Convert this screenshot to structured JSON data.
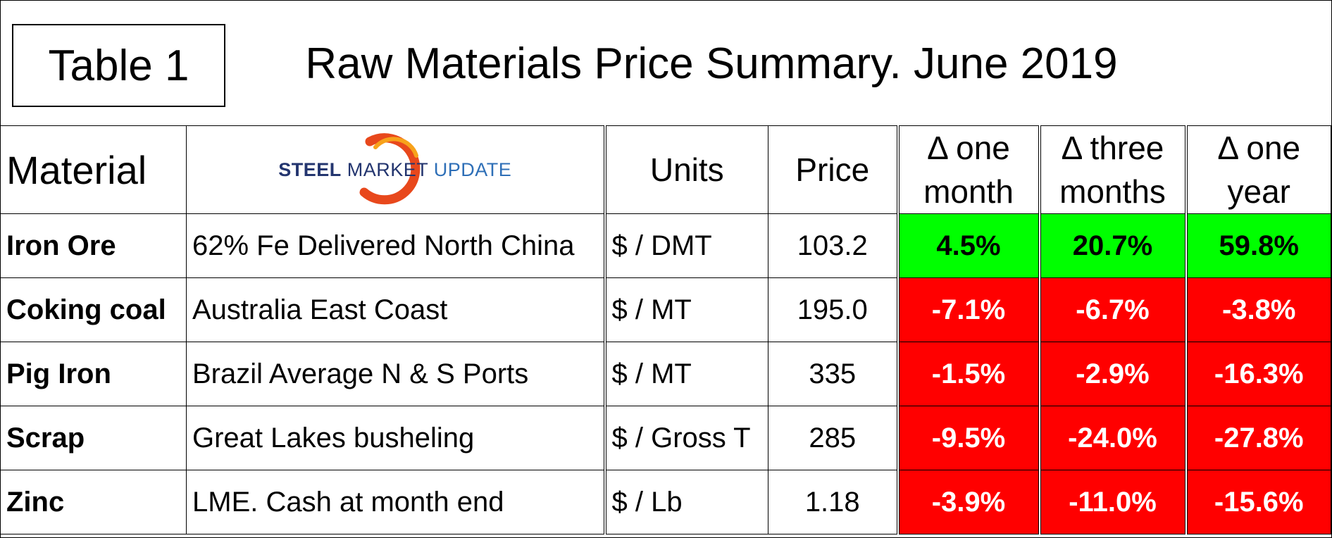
{
  "header": {
    "table_label": "Table 1",
    "title": "Raw Materials Price Summary. June 2019"
  },
  "columns": {
    "material": "Material",
    "units": "Units",
    "price": "Price",
    "delta_one_month_line1": "Δ one",
    "delta_one_month_line2": "month",
    "delta_three_months_line1": "Δ three",
    "delta_three_months_line2": "months",
    "delta_one_year_line1": "Δ one",
    "delta_one_year_line2": "year"
  },
  "logo": {
    "steel": "STEEL",
    "market": "MARKET",
    "update": "UPDATE",
    "arc_color": "#e8481c"
  },
  "rows": [
    {
      "material": "Iron Ore",
      "description": "62% Fe Delivered North China",
      "units": "$ / DMT",
      "price": "103.2",
      "d1m": "4.5%",
      "d3m": "20.7%",
      "d1y": "59.8%"
    },
    {
      "material": "Coking coal",
      "description": "Australia East Coast",
      "units": "$ / MT",
      "price": "195.0",
      "d1m": "-7.1%",
      "d3m": "-6.7%",
      "d1y": "-3.8%"
    },
    {
      "material": "Pig Iron",
      "description": "Brazil Average N & S Ports",
      "units": "$ / MT",
      "price": "335",
      "d1m": "-1.5%",
      "d3m": "-2.9%",
      "d1y": "-16.3%"
    },
    {
      "material": "Scrap",
      "description": "Great Lakes busheling",
      "units": "$ / Gross T",
      "price": "285",
      "d1m": "-9.5%",
      "d3m": "-24.0%",
      "d1y": "-27.8%"
    },
    {
      "material": "Zinc",
      "description": "LME. Cash at month end",
      "units": "$ / Lb",
      "price": "1.18",
      "d1m": "-3.9%",
      "d3m": "-11.0%",
      "d1y": "-15.6%"
    }
  ],
  "colors": {
    "positive": "#00ff00",
    "negative": "#ff0000"
  }
}
